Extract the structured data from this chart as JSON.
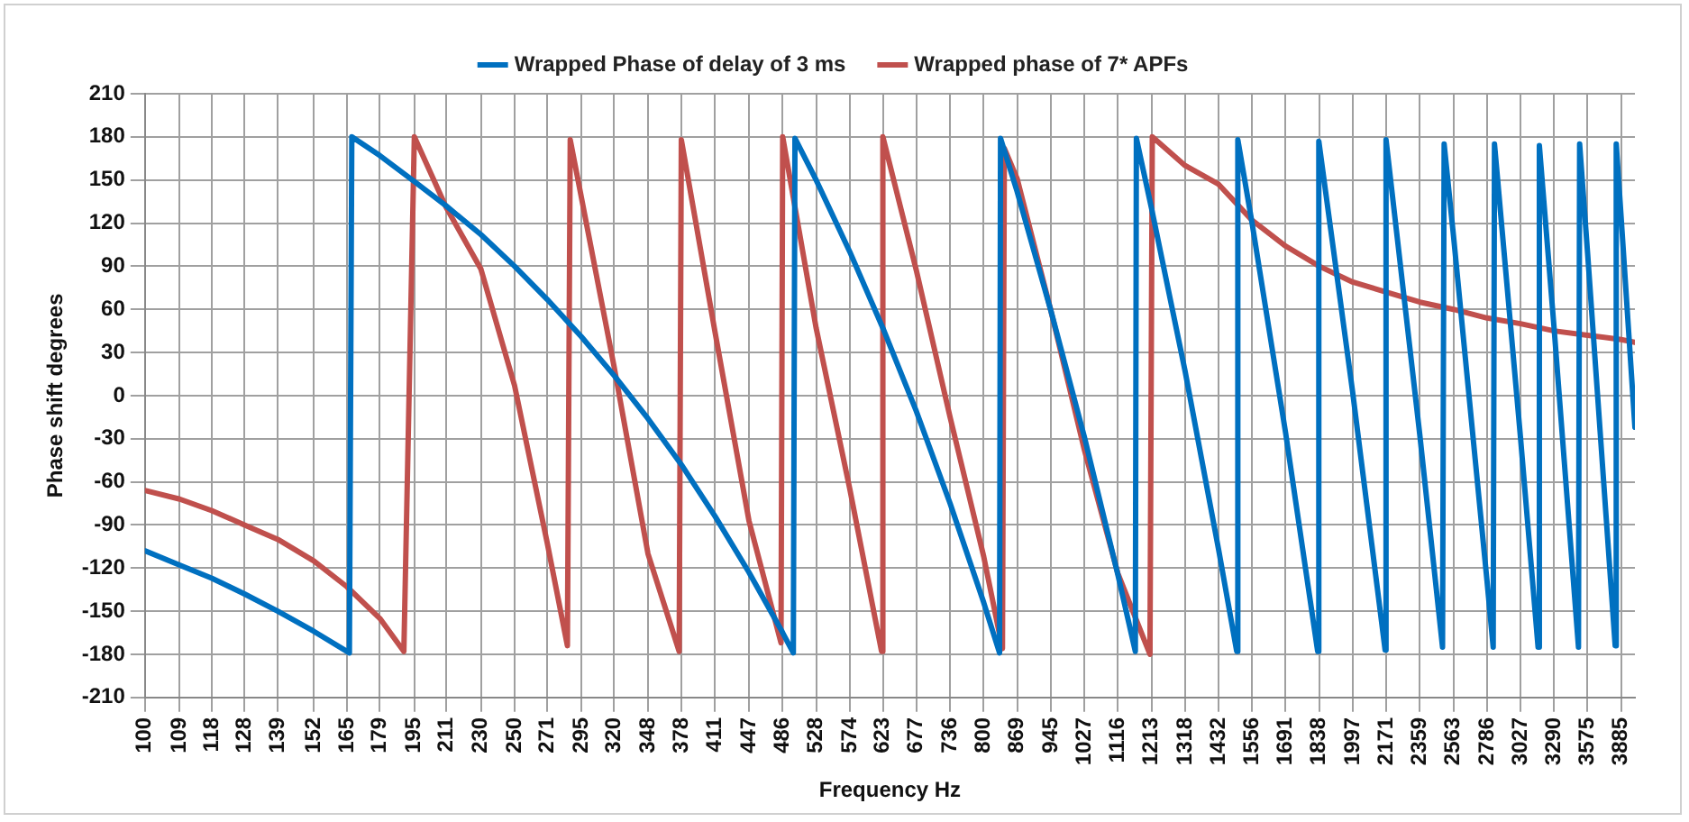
{
  "chart_data": {
    "type": "line",
    "xlabel": "Frequency Hz",
    "ylabel": "Phase shift degrees",
    "log": "x",
    "grid": true,
    "legend": "top",
    "marker": "none",
    "line_style": "solid",
    "xlim": [
      100,
      4020
    ],
    "xticks": [
      100,
      109,
      118,
      128,
      139,
      152,
      165,
      179,
      195,
      211,
      230,
      250,
      271,
      295,
      320,
      348,
      378,
      411,
      447,
      486,
      528,
      574,
      623,
      677,
      736,
      800,
      869,
      945,
      1027,
      1116,
      1213,
      1318,
      1432,
      1556,
      1691,
      1838,
      1997,
      2171,
      2359,
      2563,
      2786,
      3027,
      3290,
      3575,
      3885
    ],
    "ylim": [
      -210,
      210
    ],
    "yticks": [
      -210,
      -180,
      -150,
      -120,
      -90,
      -60,
      -30,
      0,
      30,
      60,
      90,
      120,
      150,
      180,
      210
    ],
    "series": [
      {
        "name": "Wrapped Phase of delay of 3 ms",
        "color": "#0070c0",
        "x": [
          100,
          109,
          118,
          128,
          139,
          152,
          166,
          167,
          179,
          195,
          211,
          230,
          250,
          271,
          295,
          320,
          348,
          378,
          411,
          447,
          486,
          499,
          501,
          528,
          574,
          623,
          677,
          736,
          800,
          832,
          834,
          869,
          945,
          1027,
          1116,
          1165,
          1168,
          1213,
          1318,
          1432,
          1498,
          1502,
          1556,
          1691,
          1831,
          1836,
          1997,
          2164,
          2169,
          2359,
          2495,
          2505,
          2563,
          2786,
          2829,
          2838,
          3027,
          3162,
          3172,
          3290,
          3495,
          3505,
          3575,
          3828,
          3838,
          3885,
          4020
        ],
        "values": [
          -108,
          -118,
          -127,
          -138,
          -150,
          -164,
          -179,
          180,
          167,
          149,
          132,
          112,
          90,
          67,
          41,
          14,
          -16,
          -48,
          -84,
          -123,
          -165,
          -179,
          179,
          150,
          100,
          47,
          -11,
          -75,
          -144,
          -179,
          179,
          142,
          59,
          -29,
          -125,
          -178,
          179,
          130,
          17,
          -107,
          -178,
          178,
          120,
          -26,
          -178,
          177,
          2,
          -177,
          178,
          -28,
          -175,
          175,
          112,
          -129,
          -175,
          175,
          -29,
          -175,
          174,
          47,
          -175,
          175,
          99,
          -174,
          175,
          124,
          -22
        ]
      },
      {
        "name": "Wrapped phase of 7* APFs",
        "color": "#c0504d",
        "x": [
          100,
          109,
          118,
          128,
          139,
          152,
          165,
          179,
          190,
          195,
          211,
          230,
          250,
          271,
          285,
          287,
          320,
          348,
          376,
          378,
          411,
          447,
          484,
          486,
          528,
          574,
          621,
          623,
          677,
          736,
          800,
          838,
          842,
          869,
          945,
          1027,
          1116,
          1208,
          1215,
          1318,
          1432,
          1556,
          1691,
          1838,
          1997,
          2171,
          2359,
          2563,
          2786,
          3027,
          3290,
          3575,
          3885,
          4020
        ],
        "values": [
          -66,
          -72,
          -80,
          -90,
          -100,
          -115,
          -133,
          -155,
          -178,
          180,
          131,
          88,
          7,
          -102,
          -174,
          178,
          20,
          -110,
          -178,
          178,
          44,
          -87,
          -172,
          180,
          47,
          -65,
          -178,
          180,
          87,
          -15,
          -112,
          -176,
          172,
          151,
          59,
          -38,
          -124,
          -180,
          180,
          160,
          147,
          122,
          104,
          90,
          79,
          72,
          65,
          60,
          54,
          50,
          45,
          42,
          39,
          37
        ]
      }
    ]
  }
}
